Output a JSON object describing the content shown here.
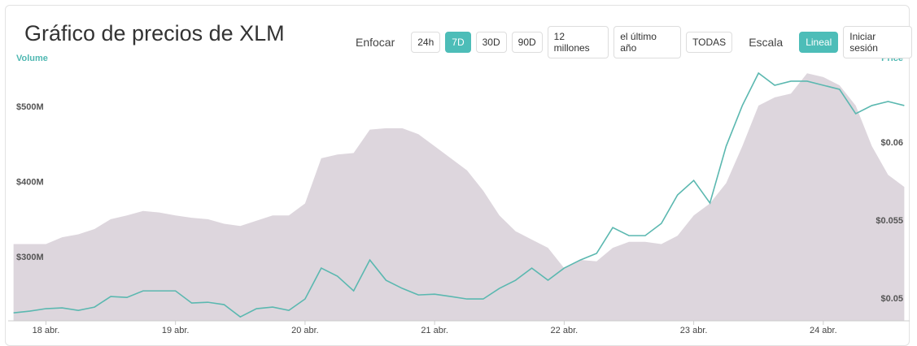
{
  "ui": {
    "title": "Gráfico de precios de XLM",
    "zoom_label": "Enfocar",
    "zoom_buttons": [
      "24h",
      "7D",
      "30D",
      "90D",
      "12 millones",
      "el último año",
      "TODAS"
    ],
    "zoom_active": 1,
    "scale_label": "Escala",
    "scale_buttons": [
      "Lineal",
      "Iniciar sesión"
    ],
    "scale_active": 0
  },
  "chart_data": {
    "type": "line",
    "x": [
      -6,
      -3,
      0,
      3,
      6,
      9,
      12,
      15,
      18,
      21,
      24,
      27,
      30,
      33,
      36,
      39,
      42,
      45,
      48,
      51,
      54,
      57,
      60,
      63,
      66,
      69,
      72,
      75,
      78,
      81,
      84,
      87,
      90,
      93,
      96,
      99,
      102,
      105,
      108,
      111,
      114,
      117,
      120,
      123,
      126,
      129,
      132,
      135,
      138,
      141,
      144,
      147,
      150,
      153,
      156,
      159
    ],
    "xlim": [
      -7,
      160
    ],
    "xticks": [
      {
        "value": 0,
        "label": "18 abr."
      },
      {
        "value": 24,
        "label": "19 abr."
      },
      {
        "value": 48,
        "label": "20 abr."
      },
      {
        "value": 72,
        "label": "21 abr."
      },
      {
        "value": 96,
        "label": "22 abr."
      },
      {
        "value": 120,
        "label": "23 abr."
      },
      {
        "value": 144,
        "label": "24 abr."
      }
    ],
    "ylim": [
      216000000,
      556000000
    ],
    "yticks": [
      {
        "value": 300000000,
        "label": "$300M"
      },
      {
        "value": 400000000,
        "label": "$400M"
      },
      {
        "value": 500000000,
        "label": "$500M"
      }
    ],
    "y2lim": [
      0.0486,
      0.065
    ],
    "y2ticks": [
      {
        "value": 0.05,
        "label": "$0.05"
      },
      {
        "value": 0.055,
        "label": "$0.055"
      },
      {
        "value": 0.06,
        "label": "$0.06"
      }
    ],
    "series": [
      {
        "name": "Volume",
        "type": "area",
        "axis": "y",
        "color": "#ddd6dd",
        "label_color": "#4fb8b2",
        "values": [
          318000000,
          318000000,
          318000000,
          327000000,
          331000000,
          338000000,
          351000000,
          356000000,
          362000000,
          360000000,
          356000000,
          353000000,
          351000000,
          345000000,
          342000000,
          349000000,
          356000000,
          356000000,
          372000000,
          432000000,
          437000000,
          439000000,
          470000000,
          472000000,
          472000000,
          464000000,
          448000000,
          432000000,
          416000000,
          389000000,
          356000000,
          335000000,
          324000000,
          313000000,
          286000000,
          297000000,
          295000000,
          313000000,
          321000000,
          321000000,
          318000000,
          329000000,
          356000000,
          372000000,
          399000000,
          448000000,
          502000000,
          513000000,
          518000000,
          545000000,
          540000000,
          529000000,
          502000000,
          448000000,
          410000000,
          394000000
        ]
      },
      {
        "name": "Price",
        "type": "line",
        "axis": "y2",
        "color": "#5bb8b0",
        "label_color": "#4fb8b2",
        "values": [
          0.04911,
          0.04922,
          0.04938,
          0.04943,
          0.04927,
          0.04948,
          0.05016,
          0.0501,
          0.05052,
          0.05052,
          0.05052,
          0.04974,
          0.04979,
          0.04964,
          0.04885,
          0.04938,
          0.04948,
          0.04927,
          0.05,
          0.05198,
          0.05146,
          0.05052,
          0.0525,
          0.0512,
          0.05068,
          0.05026,
          0.05031,
          0.05016,
          0.05,
          0.05,
          0.05068,
          0.0512,
          0.05198,
          0.0512,
          0.05198,
          0.0525,
          0.05292,
          0.05458,
          0.05406,
          0.05406,
          0.05484,
          0.05667,
          0.0576,
          0.05615,
          0.05979,
          0.0624,
          0.06448,
          0.0637,
          0.06396,
          0.06396,
          0.0637,
          0.06344,
          0.06188,
          0.0624,
          0.06266,
          0.0624
        ]
      }
    ]
  }
}
